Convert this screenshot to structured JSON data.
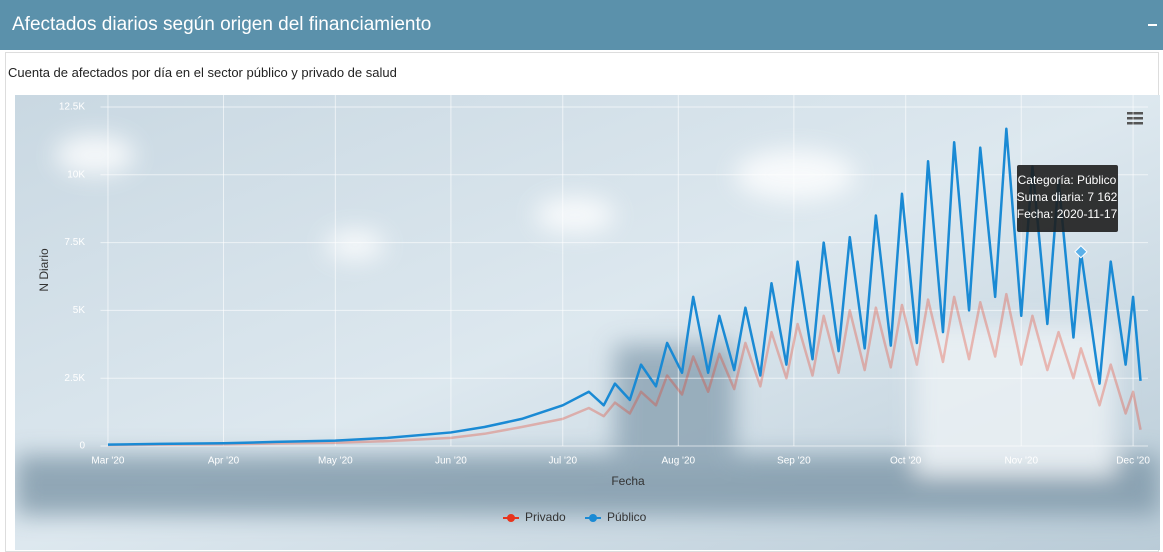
{
  "header": {
    "title": "Afectados diarios según origen del financiamiento",
    "subtitle": "Cuenta de afectados por día en el sector público y privado de salud"
  },
  "chart_data": {
    "type": "line",
    "y_label": "N Diario",
    "x_label": "Fecha",
    "x": [
      "2020-03-01",
      "2020-03-15",
      "2020-04-01",
      "2020-04-15",
      "2020-05-01",
      "2020-05-15",
      "2020-06-01",
      "2020-06-10",
      "2020-06-20",
      "2020-07-01",
      "2020-07-08",
      "2020-07-12",
      "2020-07-15",
      "2020-07-19",
      "2020-07-22",
      "2020-07-26",
      "2020-07-29",
      "2020-08-02",
      "2020-08-05",
      "2020-08-09",
      "2020-08-12",
      "2020-08-16",
      "2020-08-19",
      "2020-08-23",
      "2020-08-26",
      "2020-08-30",
      "2020-09-02",
      "2020-09-06",
      "2020-09-09",
      "2020-09-13",
      "2020-09-16",
      "2020-09-20",
      "2020-09-23",
      "2020-09-27",
      "2020-09-30",
      "2020-10-04",
      "2020-10-07",
      "2020-10-11",
      "2020-10-14",
      "2020-10-18",
      "2020-10-21",
      "2020-10-25",
      "2020-10-28",
      "2020-11-01",
      "2020-11-04",
      "2020-11-08",
      "2020-11-11",
      "2020-11-15",
      "2020-11-17",
      "2020-11-22",
      "2020-11-25",
      "2020-11-29",
      "2020-12-01",
      "2020-12-03"
    ],
    "series": [
      {
        "name": "Privado",
        "color": "#e8341c",
        "opacity": 0.3,
        "values": [
          30,
          50,
          60,
          90,
          120,
          180,
          300,
          450,
          700,
          1000,
          1400,
          1100,
          1600,
          1200,
          2000,
          1500,
          2600,
          1900,
          3300,
          2000,
          3400,
          2100,
          3800,
          2200,
          4200,
          2500,
          4500,
          2600,
          4800,
          2700,
          5000,
          2800,
          5100,
          2900,
          5200,
          3000,
          5400,
          3100,
          5500,
          3200,
          5300,
          3300,
          5600,
          3000,
          4800,
          2800,
          4200,
          2500,
          3600,
          1500,
          3000,
          1200,
          2000,
          600
        ]
      },
      {
        "name": "Público",
        "color": "#1a8ad4",
        "opacity": 1,
        "values": [
          50,
          80,
          100,
          150,
          200,
          300,
          500,
          700,
          1000,
          1500,
          2000,
          1500,
          2300,
          1700,
          3000,
          2200,
          3800,
          2700,
          5500,
          2700,
          4800,
          2800,
          5100,
          2600,
          6000,
          3000,
          6800,
          3200,
          7500,
          3500,
          7700,
          3600,
          8500,
          3700,
          9300,
          3800,
          10500,
          4200,
          11200,
          5000,
          11000,
          5500,
          11700,
          4800,
          10300,
          4500,
          9800,
          4000,
          7162,
          2300,
          6800,
          3000,
          5500,
          2400
        ]
      }
    ],
    "xlim": [
      "2020-02-28",
      "2020-12-05"
    ],
    "xticks": [
      {
        "value": "2020-03-01",
        "label": "Mar '20"
      },
      {
        "value": "2020-04-01",
        "label": "Apr '20"
      },
      {
        "value": "2020-05-01",
        "label": "May '20"
      },
      {
        "value": "2020-06-01",
        "label": "Jun '20"
      },
      {
        "value": "2020-07-01",
        "label": "Jul '20"
      },
      {
        "value": "2020-08-01",
        "label": "Aug '20"
      },
      {
        "value": "2020-09-01",
        "label": "Sep '20"
      },
      {
        "value": "2020-10-01",
        "label": "Oct '20"
      },
      {
        "value": "2020-11-01",
        "label": "Nov '20"
      },
      {
        "value": "2020-12-01",
        "label": "Dec '20"
      }
    ],
    "ylim": [
      0,
      12500
    ],
    "yticks": [
      0,
      {
        "value": 2500,
        "label": "2.5K"
      },
      {
        "value": 5000,
        "label": "5K"
      },
      {
        "value": 7500,
        "label": "7.5K"
      },
      {
        "value": 10000,
        "label": "10K"
      },
      {
        "value": 12500,
        "label": "12.5K"
      }
    ],
    "grid": true,
    "tooltip": {
      "index": 48,
      "series": 1,
      "lines": [
        "Categoría: Público",
        "Suma diaria: 7 162",
        "Fecha: 2020-11-17"
      ]
    }
  }
}
